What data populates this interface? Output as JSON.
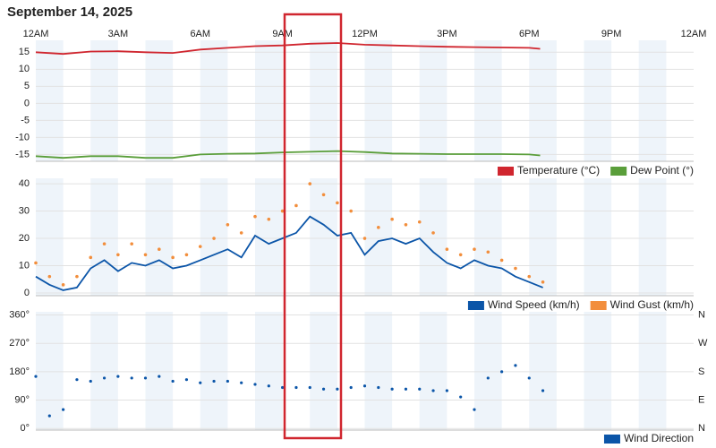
{
  "chart_data": [
    {
      "type": "line",
      "title": "September 14, 2025",
      "x": [
        0,
        1,
        2,
        3,
        4,
        5,
        6,
        7,
        8,
        9,
        10,
        11,
        12,
        13,
        14,
        15,
        16,
        17,
        18,
        18.4
      ],
      "xlim": [
        0,
        24
      ],
      "xticks": [
        {
          "value": 0,
          "label": "12AM"
        },
        {
          "value": 3,
          "label": "3AM"
        },
        {
          "value": 6,
          "label": "6AM"
        },
        {
          "value": 9,
          "label": "9AM"
        },
        {
          "value": 12,
          "label": "12PM"
        },
        {
          "value": 15,
          "label": "3PM"
        },
        {
          "value": 18,
          "label": "6PM"
        },
        {
          "value": 21,
          "label": "9PM"
        },
        {
          "value": 24,
          "label": "12AM"
        }
      ],
      "ylim": [
        -17,
        18.5
      ],
      "yticks": [
        15,
        10,
        5,
        0,
        -5,
        -10,
        -15
      ],
      "grid": true,
      "series": [
        {
          "name": "Temperature (°C)",
          "color": "#d0262f",
          "values": [
            15,
            14.5,
            15.2,
            15.3,
            15,
            14.8,
            15.8,
            16.3,
            16.8,
            17,
            17.5,
            17.7,
            17.2,
            17,
            16.8,
            16.6,
            16.5,
            16.4,
            16.3,
            16
          ]
        },
        {
          "name": "Dew Point (°)",
          "color": "#5a9e3a",
          "values": [
            -15.5,
            -16,
            -15.5,
            -15.5,
            -16,
            -16,
            -15,
            -14.8,
            -14.7,
            -14.4,
            -14.2,
            -14,
            -14.3,
            -14.7,
            -14.8,
            -14.9,
            -14.9,
            -14.9,
            -15,
            -15.3
          ]
        }
      ]
    },
    {
      "type": "line",
      "x": [
        0,
        0.5,
        1,
        1.5,
        2,
        2.5,
        3,
        3.5,
        4,
        4.5,
        5,
        5.5,
        6,
        6.5,
        7,
        7.5,
        8,
        8.5,
        9,
        9.5,
        10,
        10.5,
        11,
        11.5,
        12,
        12.5,
        13,
        13.5,
        14,
        14.5,
        15,
        15.5,
        16,
        16.5,
        17,
        17.5,
        18,
        18.5
      ],
      "xlim": [
        0,
        24
      ],
      "ylim": [
        -1,
        42
      ],
      "yticks": [
        0,
        10,
        20,
        30,
        40
      ],
      "grid": true,
      "series": [
        {
          "name": "Wind Speed (km/h)",
          "color": "#0b55a8",
          "type": "line",
          "values": [
            6,
            3,
            1,
            2,
            9,
            12,
            8,
            11,
            10,
            12,
            9,
            10,
            12,
            14,
            16,
            13,
            21,
            18,
            20,
            22,
            28,
            25,
            21,
            22,
            14,
            19,
            20,
            18,
            20,
            15,
            11,
            9,
            12,
            10,
            9,
            6,
            4,
            2
          ]
        },
        {
          "name": "Wind Gust (km/h)",
          "color": "#f28e3c",
          "type": "scatter",
          "values": [
            11,
            6,
            3,
            6,
            13,
            18,
            14,
            18,
            14,
            16,
            13,
            14,
            17,
            20,
            25,
            22,
            28,
            27,
            30,
            32,
            40,
            36,
            33,
            30,
            20,
            24,
            27,
            25,
            26,
            22,
            16,
            14,
            16,
            15,
            12,
            9,
            6,
            4
          ]
        }
      ]
    },
    {
      "type": "scatter",
      "x": [
        0,
        0.5,
        1,
        1.5,
        2,
        2.5,
        3,
        3.5,
        4,
        4.5,
        5,
        5.5,
        6,
        6.5,
        7,
        7.5,
        8,
        8.5,
        9,
        9.5,
        10,
        10.5,
        11,
        11.5,
        12,
        12.5,
        13,
        13.5,
        14,
        14.5,
        15,
        15.5,
        16,
        16.5,
        17,
        17.5,
        18,
        18.5
      ],
      "xlim": [
        0,
        24
      ],
      "ylim": [
        -5,
        370
      ],
      "yticks": [
        {
          "value": 0,
          "label": "0°"
        },
        {
          "value": 90,
          "label": "90°"
        },
        {
          "value": 180,
          "label": "180°"
        },
        {
          "value": 270,
          "label": "270°"
        },
        {
          "value": 360,
          "label": "360°"
        }
      ],
      "y2ticks": [
        {
          "value": 0,
          "label": "N"
        },
        {
          "value": 90,
          "label": "E"
        },
        {
          "value": 180,
          "label": "S"
        },
        {
          "value": 270,
          "label": "W"
        },
        {
          "value": 360,
          "label": "N"
        }
      ],
      "grid": true,
      "series": [
        {
          "name": "Wind Direction",
          "color": "#0b55a8",
          "values": [
            165,
            40,
            60,
            155,
            150,
            160,
            165,
            160,
            160,
            165,
            150,
            155,
            145,
            150,
            150,
            145,
            140,
            135,
            130,
            130,
            130,
            125,
            125,
            130,
            135,
            130,
            125,
            125,
            125,
            120,
            120,
            100,
            60,
            160,
            180,
            200,
            160,
            120
          ]
        }
      ]
    }
  ]
}
